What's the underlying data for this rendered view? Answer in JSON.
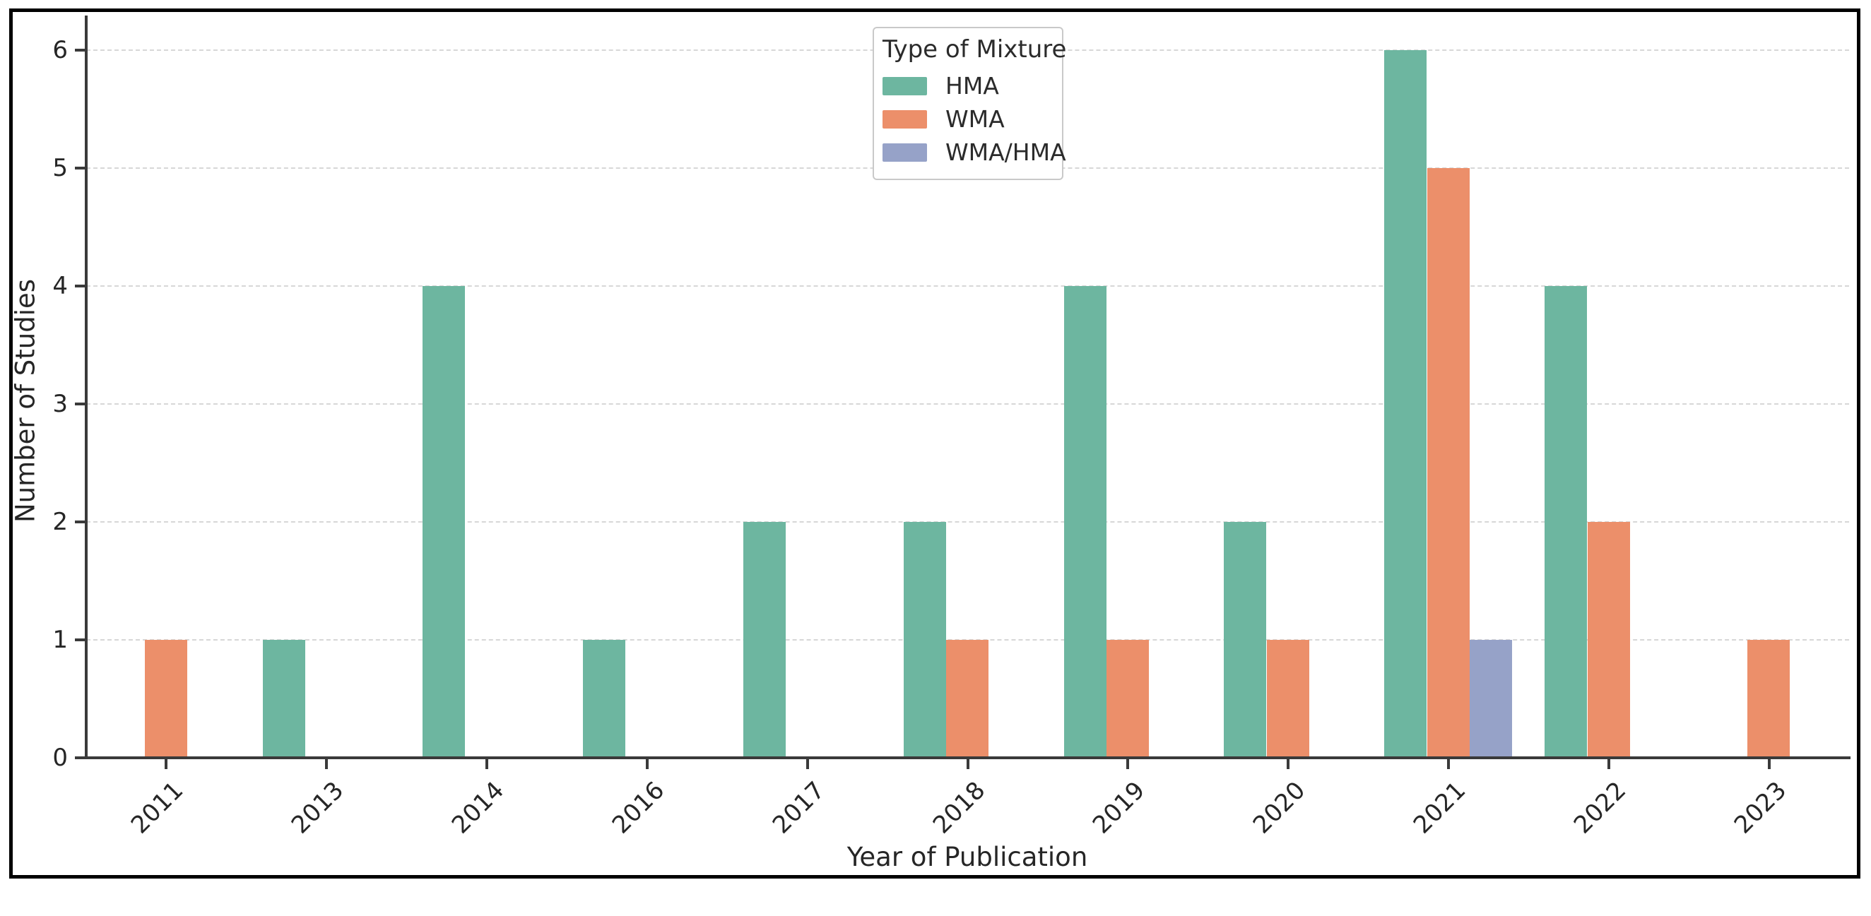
{
  "chart_data": {
    "type": "bar",
    "title": "",
    "xlabel": "Year of Publication",
    "ylabel": "Number of Studies",
    "categories": [
      "2011",
      "2013",
      "2014",
      "2016",
      "2017",
      "2018",
      "2019",
      "2020",
      "2021",
      "2022",
      "2023"
    ],
    "series": [
      {
        "name": "HMA",
        "color": "#6db6a0",
        "values": [
          0,
          1,
          4,
          1,
          2,
          2,
          4,
          2,
          6,
          4,
          0
        ]
      },
      {
        "name": "WMA",
        "color": "#ec8f6a",
        "values": [
          1,
          0,
          0,
          0,
          0,
          1,
          1,
          1,
          5,
          2,
          1
        ]
      },
      {
        "name": "WMA/HMA",
        "color": "#96a2c8",
        "values": [
          0,
          0,
          0,
          0,
          0,
          0,
          0,
          0,
          1,
          0,
          0
        ]
      }
    ],
    "ylim": [
      0,
      6.3
    ],
    "yticks": [
      0,
      1,
      2,
      3,
      4,
      5,
      6
    ],
    "legend_title": "Type of Mixture",
    "legend_position": "upper center",
    "grid": "horizontal dashed",
    "bar_group_width": 0.8,
    "x_tick_rotation": 45
  },
  "colors": {
    "spine": "#3a3a3a",
    "gridline": "#d7d7d7",
    "text": "#262626",
    "frame": "#000000",
    "background": "#ffffff"
  }
}
